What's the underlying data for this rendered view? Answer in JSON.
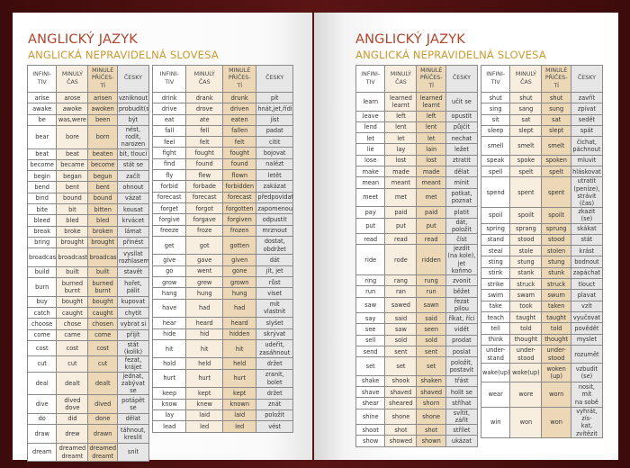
{
  "colors": {
    "title": "#b3432a",
    "subtitle": "#c99a2e",
    "cover": "#3d0b0b",
    "col_past": "#f7eedf",
    "col_participle": "#ecd8b6",
    "col_czech": "#e6e6e6"
  },
  "headers": [
    "INFINI-\nTIV",
    "MINULÝ\nČAS",
    "MINULÉ\nPŘÍČES-\nTÍ",
    "ČESKY"
  ],
  "pages": [
    {
      "title": "ANGLICKÝ JAZYK",
      "subtitle": "ANGLICKÁ NEPRAVIDELNÁ SLOVESA",
      "tables": [
        [
          [
            "arise",
            "arose",
            "arisen",
            "vzniknout"
          ],
          [
            "awake",
            "awoke",
            "awoken",
            "probudit(se)"
          ],
          [
            "be",
            "was,were",
            "been",
            "být"
          ],
          [
            "bear",
            "bore",
            "born",
            "nést, rodit,\nnarozen"
          ],
          [
            "beat",
            "beat",
            "beaten",
            "bít, tlouci"
          ],
          [
            "become",
            "became",
            "become",
            "stát se"
          ],
          [
            "begin",
            "began",
            "begun",
            "začít"
          ],
          [
            "bend",
            "bent",
            "bent",
            "ohnout"
          ],
          [
            "bind",
            "bound",
            "bound",
            "vázat"
          ],
          [
            "bite",
            "bit",
            "bitten",
            "kousat"
          ],
          [
            "bleed",
            "bled",
            "bled",
            "krvácet"
          ],
          [
            "break",
            "broke",
            "broken",
            "lámat"
          ],
          [
            "bring",
            "brought",
            "brought",
            "přinést"
          ],
          [
            "broadcast",
            "broadcast",
            "broadcast",
            "vysílat\nrozhlasem"
          ],
          [
            "build",
            "built",
            "built",
            "stavět"
          ],
          [
            "burn",
            "burned\nburnt",
            "burned\nburnt",
            "hořet, pálit"
          ],
          [
            "buy",
            "bought",
            "bought",
            "kupovat"
          ],
          [
            "catch",
            "caught",
            "caught",
            "chytit"
          ],
          [
            "choose",
            "chose",
            "chosen",
            "vybrat si"
          ],
          [
            "come",
            "came",
            "come",
            "přijít"
          ],
          [
            "cost",
            "cost",
            "cost",
            "stát (kolik)"
          ],
          [
            "cut",
            "cut",
            "cut",
            "řezat, krájet"
          ],
          [
            "deal",
            "dealt",
            "dealt",
            "jednat,\nzabývat se"
          ],
          [
            "dive",
            "dived\ndove",
            "dived",
            "potápět se"
          ],
          [
            "do",
            "did",
            "done",
            "dělat"
          ],
          [
            "draw",
            "drew",
            "drawn",
            "táhnout,\nkreslit"
          ],
          [
            "dream",
            "dreamed\ndreamt",
            "dreamed\ndreamt",
            "snít"
          ]
        ],
        [
          [
            "drink",
            "drank",
            "drunk",
            "pít"
          ],
          [
            "drive",
            "drove",
            "driven",
            "hnát,jet,řídit"
          ],
          [
            "eat",
            "ate",
            "eaten",
            "jíst"
          ],
          [
            "fall",
            "fell",
            "fallen",
            "padat"
          ],
          [
            "feel",
            "felt",
            "felt",
            "cítit"
          ],
          [
            "fight",
            "fought",
            "fought",
            "bojovat"
          ],
          [
            "find",
            "found",
            "found",
            "nalézt"
          ],
          [
            "fly",
            "flew",
            "flown",
            "letět"
          ],
          [
            "forbid",
            "forbade",
            "forbidden",
            "zakázat"
          ],
          [
            "forecast",
            "forecast",
            "forecast",
            "předpovídat"
          ],
          [
            "forget",
            "forgot",
            "forgotten",
            "zapomenout"
          ],
          [
            "forgive",
            "forgave",
            "forgiven",
            "odpustit"
          ],
          [
            "freeze",
            "froze",
            "frozen",
            "mrznout"
          ],
          [
            "get",
            "got",
            "gotten",
            "dostat,\nobdržet"
          ],
          [
            "give",
            "gave",
            "given",
            "dát"
          ],
          [
            "go",
            "went",
            "gone",
            "jít, jet"
          ],
          [
            "grow",
            "grew",
            "grown",
            "růst"
          ],
          [
            "hang",
            "hung",
            "hung",
            "viset"
          ],
          [
            "have",
            "had",
            "had",
            "mít\nvlastnit"
          ],
          [
            "hear",
            "heard",
            "heard",
            "slyšet"
          ],
          [
            "hide",
            "hid",
            "hidden",
            "skrývat"
          ],
          [
            "hit",
            "hit",
            "hit",
            "udeřit,\nzasáhnout"
          ],
          [
            "hold",
            "held",
            "held",
            "držet"
          ],
          [
            "hurt",
            "hurt",
            "hurt",
            "zranit,\nbolet"
          ],
          [
            "keep",
            "kept",
            "kept",
            "držet"
          ],
          [
            "know",
            "knew",
            "known",
            "znát"
          ],
          [
            "lay",
            "laid",
            "laid",
            "položit"
          ],
          [
            "lead",
            "led",
            "led",
            "vést"
          ]
        ]
      ]
    },
    {
      "title": "ANGLICKÝ JAZYK",
      "subtitle": "ANGLICKÁ NEPRAVIDELNÁ SLOVESA",
      "tables": [
        [
          [
            "learn",
            "learned\nlearnt",
            "learned\nlearnt",
            "učit se"
          ],
          [
            "leave",
            "left",
            "left",
            "opustit"
          ],
          [
            "lend",
            "lent",
            "lent",
            "půjčit"
          ],
          [
            "let",
            "let",
            "let",
            "nechat"
          ],
          [
            "lie",
            "lay",
            "lain",
            "ležet"
          ],
          [
            "lose",
            "lost",
            "lost",
            "ztratit"
          ],
          [
            "make",
            "made",
            "made",
            "dělat"
          ],
          [
            "mean",
            "meant",
            "meant",
            "mínit"
          ],
          [
            "meet",
            "met",
            "met",
            "potkat,\npoznat"
          ],
          [
            "pay",
            "paid",
            "paid",
            "platit"
          ],
          [
            "put",
            "put",
            "put",
            "dát, položit"
          ],
          [
            "read",
            "read",
            "read",
            "číst"
          ],
          [
            "ride",
            "rode",
            "ridden",
            "jezdit\n(na kole),\njet koňmo"
          ],
          [
            "ring",
            "rang",
            "rung",
            "zvonit"
          ],
          [
            "run",
            "ran",
            "run",
            "běžet"
          ],
          [
            "saw",
            "sawed",
            "sawn",
            "řezat pilou"
          ],
          [
            "say",
            "said",
            "said",
            "říkat, říci"
          ],
          [
            "see",
            "saw",
            "seen",
            "vidět"
          ],
          [
            "sell",
            "sold",
            "sold",
            "prodat"
          ],
          [
            "send",
            "sent",
            "sent",
            "poslat"
          ],
          [
            "set",
            "set",
            "set",
            "položit,\npostavit"
          ],
          [
            "shake",
            "shook",
            "shaken",
            "třást"
          ],
          [
            "shave",
            "shaved",
            "shaved",
            "holit se"
          ],
          [
            "shear",
            "sheared",
            "shorn",
            "stříhat"
          ],
          [
            "shine",
            "shone",
            "shone",
            "svítit, zářit"
          ],
          [
            "shoot",
            "shot",
            "shot",
            "střílet"
          ],
          [
            "show",
            "showed",
            "shown",
            "ukázat"
          ]
        ],
        [
          [
            "shut",
            "shut",
            "shut",
            "zavřít"
          ],
          [
            "sing",
            "sang",
            "sung",
            "zpívat"
          ],
          [
            "sit",
            "sat",
            "sat",
            "sedět"
          ],
          [
            "sleep",
            "slept",
            "slept",
            "spát"
          ],
          [
            "smell",
            "smelt",
            "smelt",
            "čichat,\npáchnout"
          ],
          [
            "speak",
            "spoke",
            "spoken",
            "mluvit"
          ],
          [
            "spell",
            "spelt",
            "spelt",
            "hláskovat"
          ],
          [
            "spend",
            "spent",
            "spent",
            "utratit\n(peníze),\nstrávit (čas)"
          ],
          [
            "spoil",
            "spoilt",
            "spoilt",
            "zkazit (se)"
          ],
          [
            "spring",
            "sprang",
            "sprung",
            "skákat"
          ],
          [
            "stand",
            "stood",
            "stood",
            "stát"
          ],
          [
            "steal",
            "stole",
            "stolen",
            "krást"
          ],
          [
            "sting",
            "stung",
            "stung",
            "bodnout"
          ],
          [
            "stink",
            "stank",
            "stunk",
            "zapáchat"
          ],
          [
            "strike",
            "struck",
            "struck",
            "tlouct"
          ],
          [
            "swim",
            "swam",
            "swum",
            "plavat"
          ],
          [
            "take",
            "took",
            "taken",
            "vzít"
          ],
          [
            "teach",
            "taught",
            "taught",
            "vyučovat"
          ],
          [
            "tell",
            "told",
            "told",
            "povědět"
          ],
          [
            "think",
            "thought",
            "thought",
            "myslet"
          ],
          [
            "under-\nstand",
            "under-\nstood",
            "under-\nstood",
            "rozumět"
          ],
          [
            "wake(up)",
            "woke(up)",
            "woken\n(up)",
            "vzbudit (se)"
          ],
          [
            "wear",
            "wore",
            "worn",
            "nosit,\nmít\nna sobě"
          ],
          [
            "win",
            "won",
            "won",
            "vyhrát, zís-\nkat, zvítězit"
          ]
        ]
      ]
    }
  ]
}
